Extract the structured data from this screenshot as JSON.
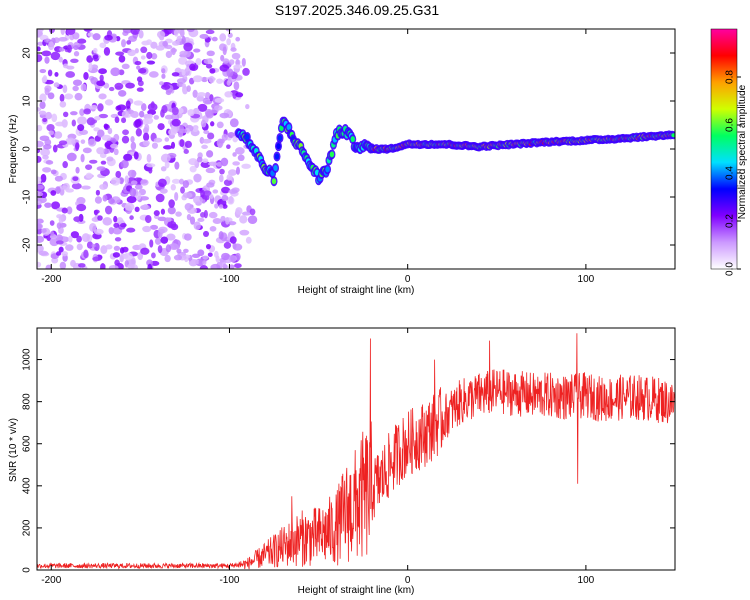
{
  "title": "S197.2025.346.09.25.G31",
  "chart_data": [
    {
      "type": "heatmap",
      "name": "spectrogram",
      "xlabel": "Height of straight line (km)",
      "ylabel": "Frequency (Hz)",
      "xlim": [
        -208,
        150
      ],
      "ylim": [
        -25,
        25
      ],
      "xticks": [
        -200,
        -100,
        0,
        100
      ],
      "xtick_labels": [
        "-200",
        "-100",
        "0",
        "100"
      ],
      "yticks": [
        -20,
        -10,
        0,
        10,
        20
      ],
      "ytick_labels": [
        "-20",
        "-10",
        "0",
        "10",
        "20"
      ],
      "grid": false,
      "colorbar": {
        "label": "Normalized spectral amplitude",
        "range": [
          0,
          1
        ],
        "ticks": [
          0.0,
          0.2,
          0.4,
          0.6,
          0.8
        ],
        "tick_labels": [
          "0.0",
          "0.2",
          "0.4",
          "0.6",
          "0.8"
        ],
        "colors": [
          "#ffffff",
          "#cc99ff",
          "#8000ff",
          "#0000ff",
          "#00e0ff",
          "#00ff60",
          "#d0ff00",
          "#ffa000",
          "#ff0000",
          "#ff00a0"
        ]
      },
      "noise_region": {
        "x": [
          -208,
          -95
        ],
        "y": [
          -25,
          25
        ],
        "level": [
          0.0,
          0.15
        ]
      },
      "tone_track": [
        {
          "x": -95,
          "y": 3.5
        },
        {
          "x": -90,
          "y": 2
        },
        {
          "x": -85,
          "y": -1
        },
        {
          "x": -80,
          "y": -4
        },
        {
          "x": -75,
          "y": -6
        },
        {
          "x": -70,
          "y": 6
        },
        {
          "x": -65,
          "y": 3
        },
        {
          "x": -60,
          "y": 0
        },
        {
          "x": -55,
          "y": -3
        },
        {
          "x": -50,
          "y": -6
        },
        {
          "x": -45,
          "y": -4
        },
        {
          "x": -40,
          "y": 3
        },
        {
          "x": -35,
          "y": 4
        },
        {
          "x": -30,
          "y": 1
        },
        {
          "x": -25,
          "y": 0.5
        },
        {
          "x": -20,
          "y": 0
        },
        {
          "x": -10,
          "y": 0
        },
        {
          "x": 0,
          "y": 1
        },
        {
          "x": 20,
          "y": 1
        },
        {
          "x": 40,
          "y": 0.5
        },
        {
          "x": 60,
          "y": 1
        },
        {
          "x": 80,
          "y": 1.5
        },
        {
          "x": 100,
          "y": 1.8
        },
        {
          "x": 120,
          "y": 2.2
        },
        {
          "x": 150,
          "y": 3
        }
      ]
    },
    {
      "type": "line",
      "name": "snr",
      "xlabel": "Height of straight line (km)",
      "ylabel": "SNR (10 * v/v)",
      "xlim": [
        -208,
        150
      ],
      "ylim": [
        0,
        1150
      ],
      "xticks": [
        -200,
        -100,
        0,
        100
      ],
      "xtick_labels": [
        "-200",
        "-100",
        "0",
        "100"
      ],
      "yticks": [
        0,
        200,
        400,
        600,
        800,
        1000
      ],
      "ytick_labels": [
        "0",
        "200",
        "400",
        "600",
        "800",
        "1000"
      ],
      "grid": false,
      "series": [
        {
          "name": "SNR",
          "color": "#ee2222",
          "x": [
            -208,
            -190,
            -170,
            -150,
            -130,
            -110,
            -100,
            -90,
            -80,
            -70,
            -60,
            -50,
            -40,
            -35,
            -30,
            -25,
            -20,
            -15,
            -10,
            -5,
            0,
            10,
            20,
            30,
            40,
            50,
            60,
            70,
            80,
            90,
            100,
            110,
            120,
            130,
            140,
            150
          ],
          "y": [
            20,
            20,
            20,
            20,
            20,
            20,
            20,
            30,
            70,
            110,
            150,
            160,
            200,
            270,
            300,
            350,
            380,
            430,
            500,
            560,
            600,
            650,
            720,
            800,
            830,
            850,
            840,
            830,
            830,
            820,
            830,
            810,
            820,
            820,
            810,
            790
          ],
          "spikes": [
            {
              "x": -21,
              "y": 1100
            },
            {
              "x": 95,
              "y": 1125
            },
            {
              "x": 95.5,
              "y": 410
            },
            {
              "x": 46,
              "y": 1090
            },
            {
              "x": 15,
              "y": 1000
            },
            {
              "x": -65,
              "y": 350
            }
          ]
        }
      ]
    }
  ]
}
